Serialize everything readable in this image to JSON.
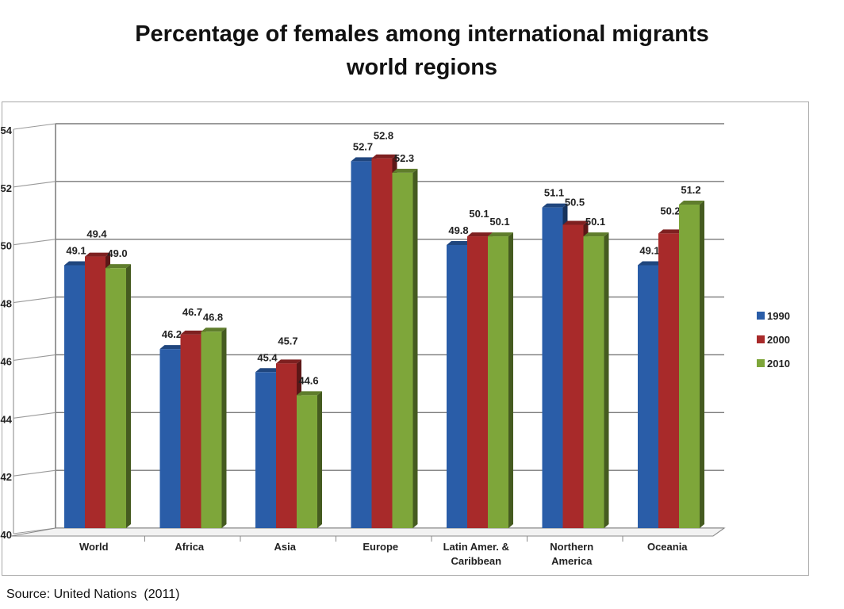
{
  "slide": {
    "title_line1": "Percentage of females among international migrants",
    "title_line2": "world regions",
    "source": "Source: United Nations  (2011)"
  },
  "chart_data": {
    "type": "bar",
    "title": "",
    "xlabel": "",
    "ylabel": "",
    "ylim": [
      40,
      54
    ],
    "yticks": [
      40,
      42,
      44,
      46,
      48,
      50,
      52,
      54
    ],
    "grid": true,
    "legend_position": "right",
    "categories": [
      "World",
      "Africa",
      "Asia",
      "Europe",
      "Latin Amer. & Caribbean",
      "Northern America",
      "Oceania"
    ],
    "category_lines": [
      [
        "World"
      ],
      [
        "Africa"
      ],
      [
        "Asia"
      ],
      [
        "Europe"
      ],
      [
        "Latin Amer. &",
        "Caribbean"
      ],
      [
        "Northern",
        "America"
      ],
      [
        "Oceania"
      ]
    ],
    "series": [
      {
        "name": "1990",
        "color": "#2a5da8",
        "values": [
          49.1,
          46.2,
          45.4,
          52.7,
          49.8,
          51.1,
          49.1
        ]
      },
      {
        "name": "2000",
        "color": "#a82a2a",
        "values": [
          49.4,
          46.7,
          45.7,
          52.8,
          50.1,
          50.5,
          50.2
        ]
      },
      {
        "name": "2010",
        "color": "#7ea63a",
        "values": [
          49.0,
          46.8,
          44.6,
          52.3,
          50.1,
          50.1,
          51.2
        ]
      }
    ]
  }
}
